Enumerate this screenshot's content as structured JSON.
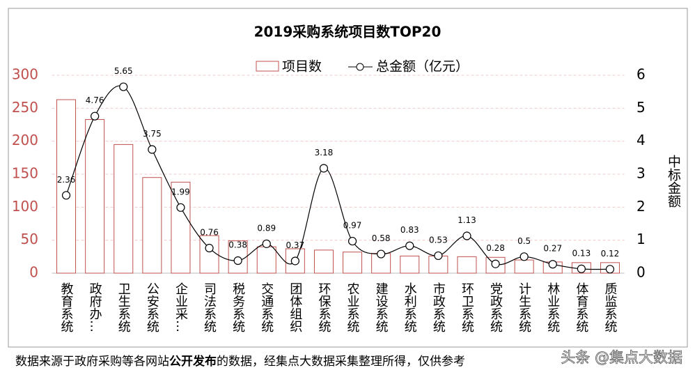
{
  "chart_data": {
    "type": "combo",
    "title": "2019采购系统项目数TOP20",
    "categories": [
      "教育系统",
      "政府办…",
      "卫生系统",
      "公安系统",
      "企业采…",
      "司法系统",
      "税务系统",
      "交通系统",
      "团体组织",
      "环保系统",
      "农业系统",
      "建设系统",
      "水利系统",
      "市政系统",
      "环卫系统",
      "党政系统",
      "计生系统",
      "林业系统",
      "体育系统",
      "质监系统"
    ],
    "series": [
      {
        "name": "项目数",
        "type": "bar",
        "color": "#c0504d",
        "values": [
          263,
          233,
          195,
          145,
          138,
          57,
          49,
          40,
          37,
          35,
          32,
          30,
          26,
          26,
          25,
          24,
          20,
          17,
          16,
          16
        ]
      },
      {
        "name": "总金额（亿元）",
        "type": "line",
        "axis": "y2",
        "color": "#000000",
        "values": [
          2.36,
          4.76,
          5.65,
          3.75,
          1.99,
          0.76,
          0.38,
          0.89,
          0.37,
          3.18,
          0.97,
          0.58,
          0.83,
          0.53,
          1.13,
          0.28,
          0.5,
          0.27,
          0.13,
          0.12
        ]
      }
    ],
    "ylim": [
      0,
      300
    ],
    "yticks": [
      0,
      50,
      100,
      150,
      200,
      250,
      300
    ],
    "y2lim": [
      0,
      6
    ],
    "y2ticks": [
      0,
      1,
      2,
      3,
      4,
      5,
      6
    ],
    "y2label": "中标金额",
    "grid": true
  },
  "footer": {
    "before": "数据来源于政府采购等各网站",
    "bold": "公开发布",
    "after": "的数据，经集点大数据采集整理所得，仅供参考"
  },
  "watermark": "头条 @集点大数据"
}
